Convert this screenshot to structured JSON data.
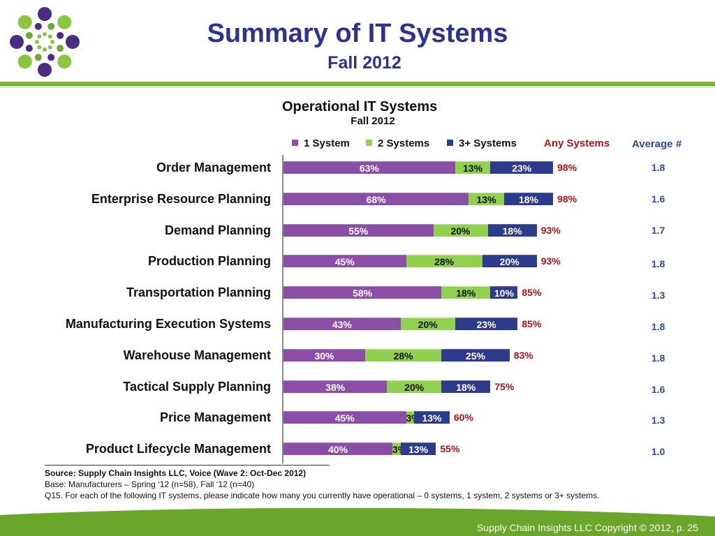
{
  "slide": {
    "title": "Summary of IT Systems",
    "subtitle": "Fall 2012"
  },
  "logo": {
    "icon": "dot-ring-logo-icon",
    "colors": [
      "#8cc63f",
      "#4b2e83",
      "#6fa83a"
    ]
  },
  "chart_data": {
    "type": "bar",
    "orientation": "horizontal",
    "stacked": true,
    "title": "Operational IT Systems",
    "subtitle": "Fall 2012",
    "xlim": [
      0,
      100
    ],
    "grid": false,
    "legend_position": "top",
    "categories": [
      "Order Management",
      "Enterprise Resource Planning",
      "Demand Planning",
      "Production Planning",
      "Transportation Planning",
      "Manufacturing Execution Systems",
      "Warehouse Management",
      "Tactical Supply Planning",
      "Price Management",
      "Product Lifecycle Management"
    ],
    "series": [
      {
        "name": "1 System",
        "color": "#8b4ea6",
        "values": [
          63,
          68,
          55,
          45,
          58,
          43,
          30,
          38,
          45,
          40
        ],
        "labels": [
          "63%",
          "68%",
          "55%",
          "45%",
          "58%",
          "43%",
          "30%",
          "38%",
          "45%",
          "40%"
        ]
      },
      {
        "name": "2 Systems",
        "color": "#92d050",
        "values": [
          13,
          13,
          20,
          28,
          18,
          20,
          28,
          20,
          3,
          3
        ],
        "labels": [
          "13%",
          "13%",
          "20%",
          "28%",
          "18%",
          "20%",
          "28%",
          "20%",
          "3%",
          "3%"
        ]
      },
      {
        "name": "3+ Systems",
        "color": "#2e3a8c",
        "values": [
          23,
          18,
          18,
          20,
          10,
          23,
          25,
          18,
          13,
          13
        ],
        "labels": [
          "23%",
          "18%",
          "18%",
          "20%",
          "10%",
          "23%",
          "25%",
          "18%",
          "13%",
          "13%"
        ]
      }
    ],
    "any_systems": {
      "header": "Any Systems",
      "color": "#b5121b",
      "values": [
        98,
        98,
        93,
        93,
        85,
        85,
        83,
        75,
        60,
        55
      ],
      "labels": [
        "98%",
        "98%",
        "93%",
        "93%",
        "85%",
        "85%",
        "83%",
        "75%",
        "60%",
        "55%"
      ]
    },
    "average": {
      "header": "Average #",
      "color": "#2e4a94",
      "values": [
        "1.8",
        "1.6",
        "1.7",
        "1.8",
        "1.3",
        "1.8",
        "1.8",
        "1.6",
        "1.3",
        "1.0"
      ]
    }
  },
  "notes": {
    "source": "Source:  Supply Chain Insights LLC, Voice (Wave 2: Oct-Dec 2012)",
    "base": "Base:  Manufacturers – Spring ‘12 (n=58), Fall ‘12 (n=40)",
    "question": "Q15. For each of the following IT systems, please indicate how many you currently have operational – 0 systems, 1 system, 2 systems or 3+ systems."
  },
  "footer": {
    "copyright": "Supply Chain Insights LLC Copyright © 2012, p. 25",
    "band_color": "#6aa62a"
  }
}
